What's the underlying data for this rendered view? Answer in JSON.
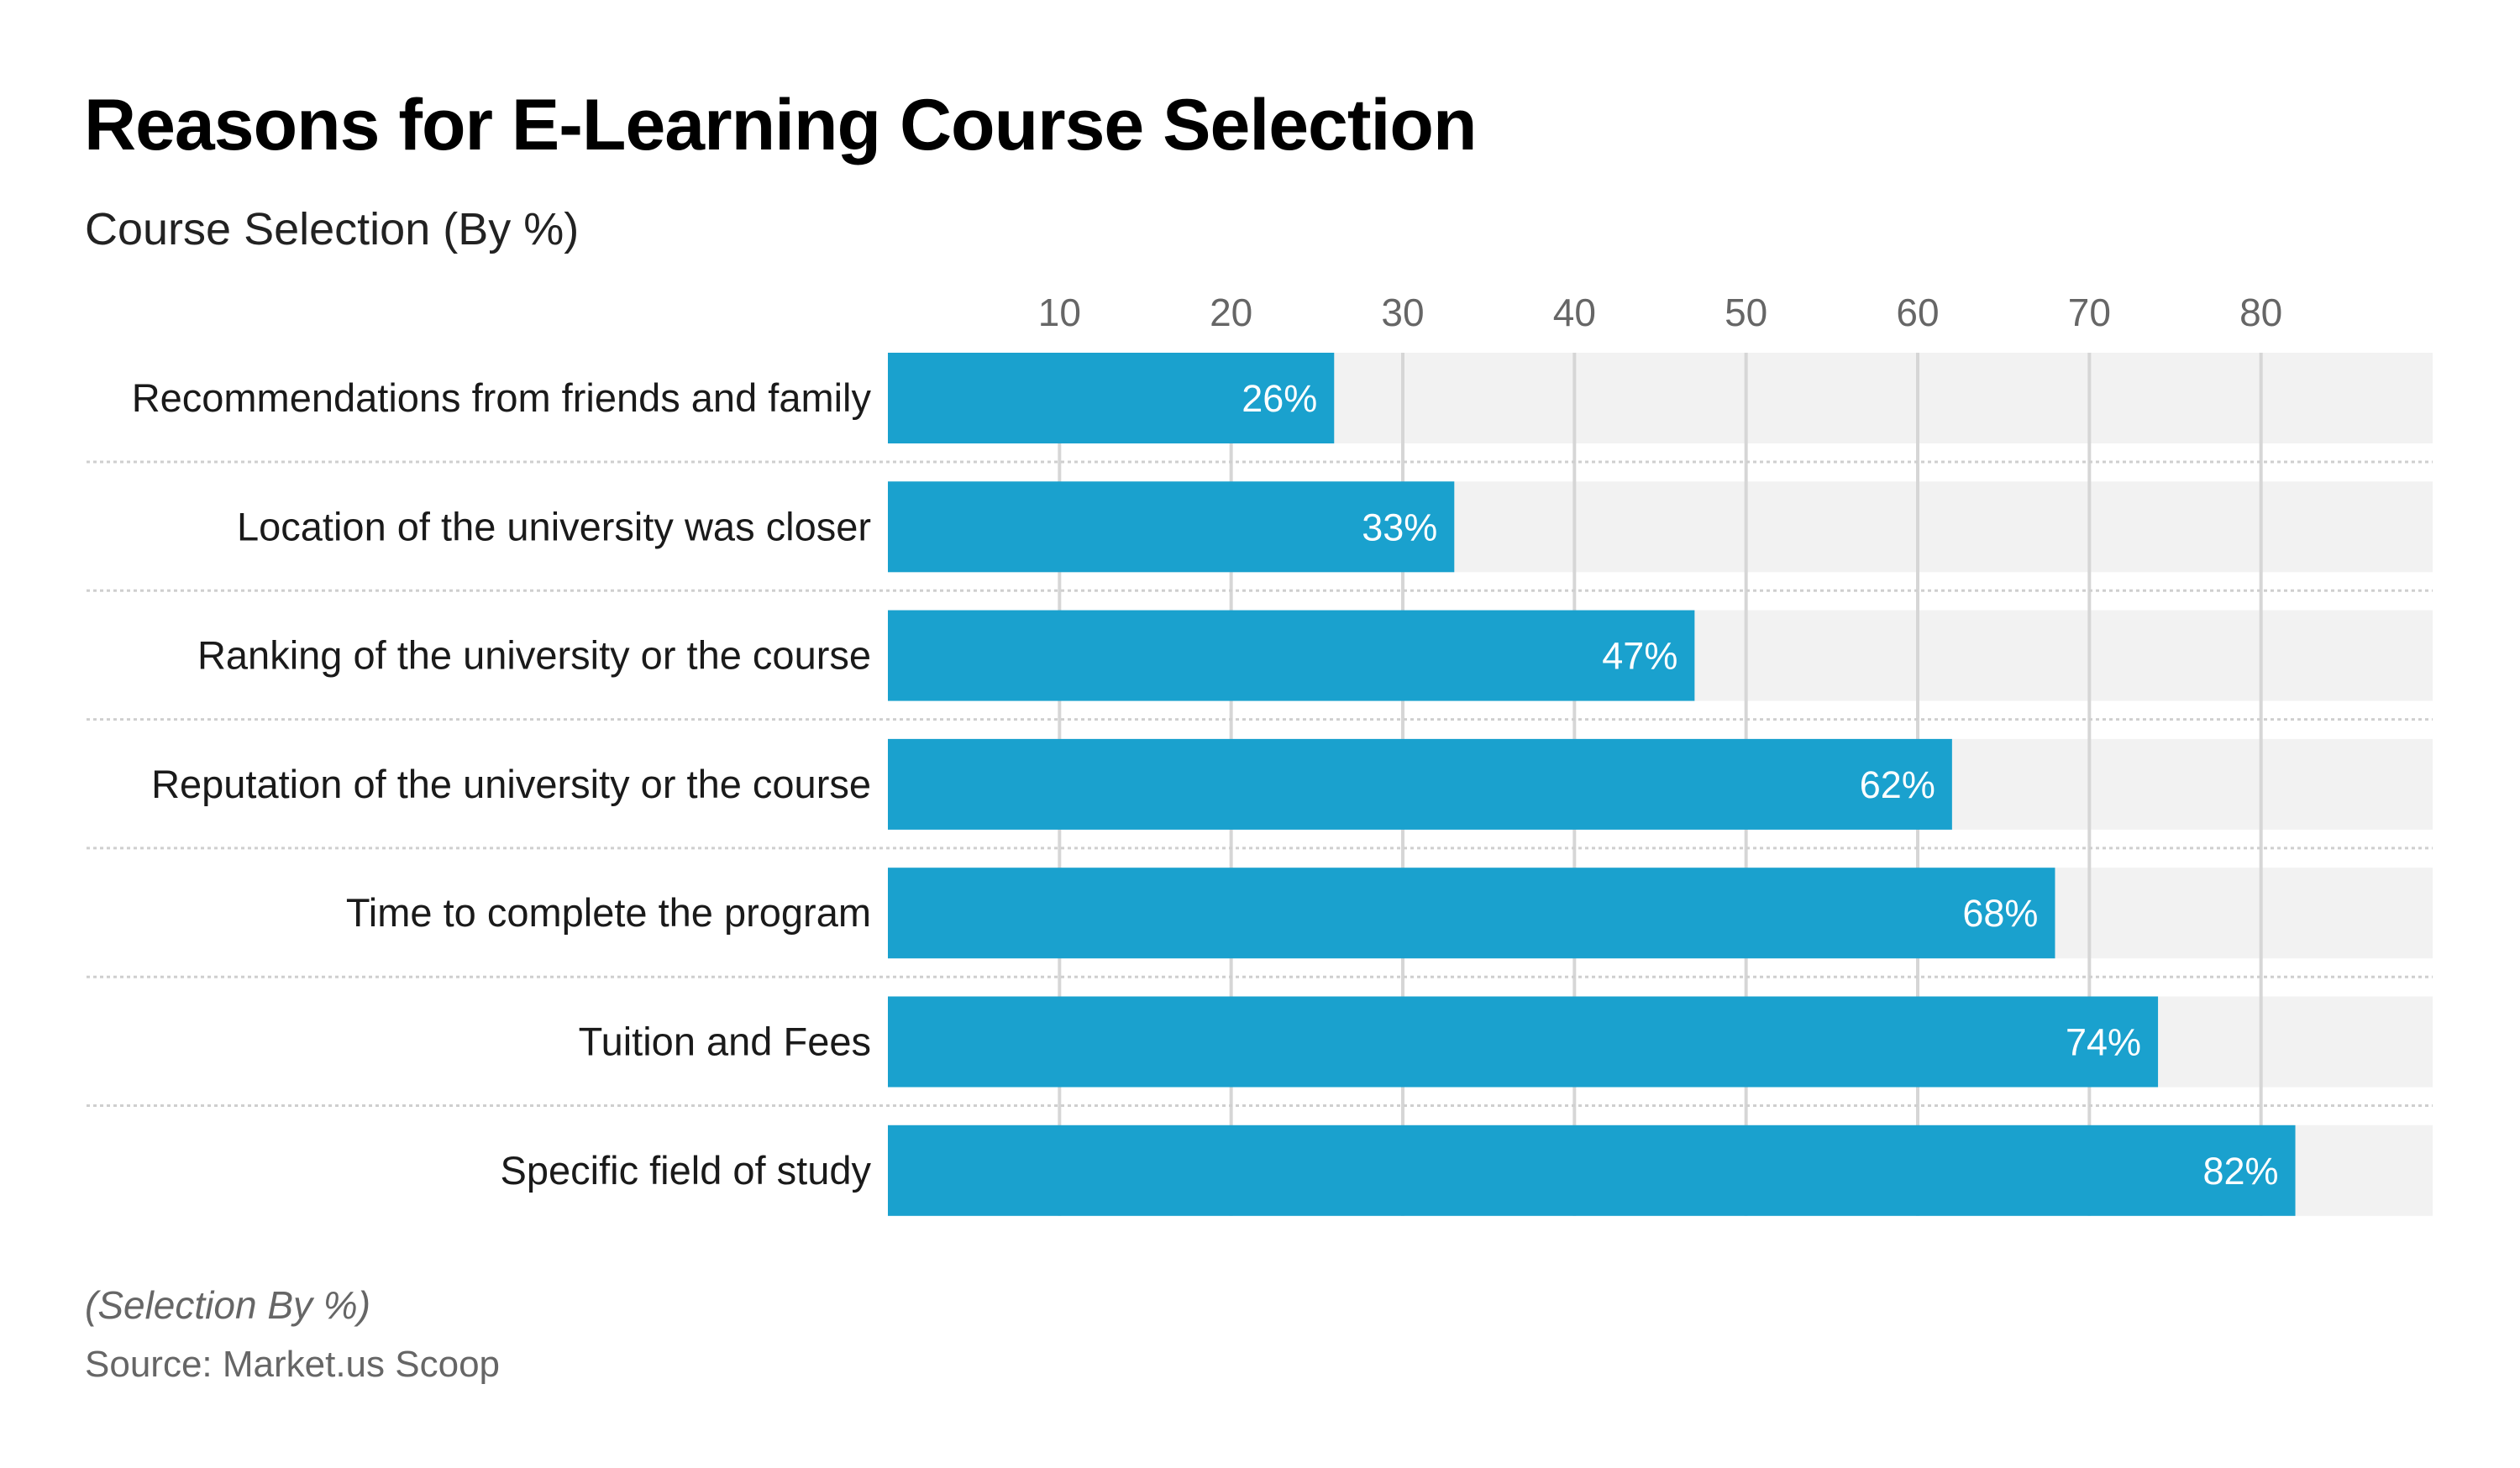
{
  "chart_data": {
    "type": "bar",
    "orientation": "horizontal",
    "title": "Reasons for E-Learning Course Selection",
    "subtitle": "Course Selection (By %)",
    "xlabel": "",
    "ylabel": "",
    "xlim": [
      0,
      90
    ],
    "ticks": [
      10,
      20,
      30,
      40,
      50,
      60,
      70,
      80
    ],
    "grid": true,
    "categories": [
      "Recommendations from friends and family",
      "Location of the university was closer",
      "Ranking of the university or the course",
      "Reputation of the university or the course",
      "Time to complete the program",
      "Tuition and Fees",
      "Specific field of study"
    ],
    "values": [
      26,
      33,
      47,
      62,
      68,
      74,
      82
    ],
    "value_labels": [
      "26%",
      "33%",
      "47%",
      "62%",
      "68%",
      "74%",
      "82%"
    ],
    "bar_color": "#1aa1ce",
    "track_color": "#f2f2f2",
    "note": "(Selection By %)",
    "source": "Source: Market.us Scoop"
  }
}
